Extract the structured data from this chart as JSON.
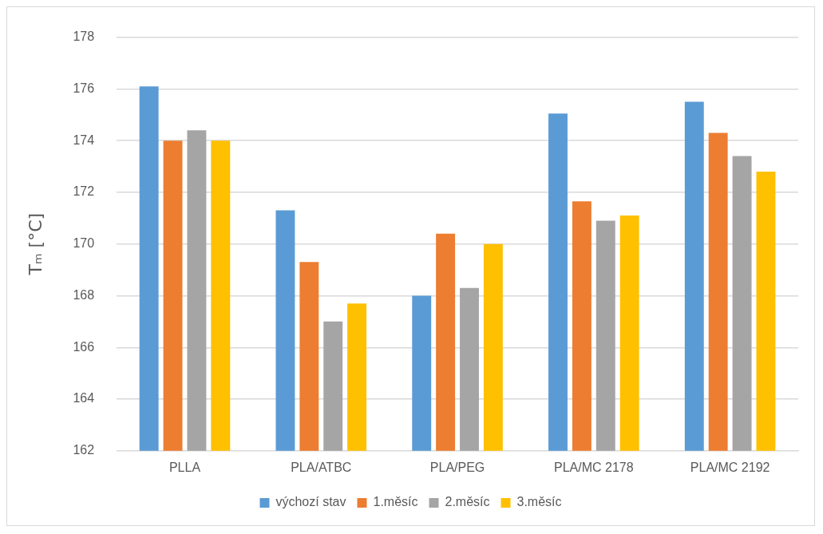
{
  "chart_data": {
    "type": "bar",
    "ylabel": "Tₘ [°C]",
    "categories": [
      "PLLA",
      "PLA/ATBC",
      "PLA/PEG",
      "PLA/MC 2178",
      "PLA/MC 2192"
    ],
    "series": [
      {
        "name": "výchozí stav",
        "color": "#5b9bd5",
        "values": [
          176.1,
          171.3,
          168.0,
          175.05,
          175.5
        ]
      },
      {
        "name": "1.měsíc",
        "color": "#ed7d31",
        "values": [
          174.0,
          169.3,
          170.4,
          171.65,
          174.3
        ]
      },
      {
        "name": "2.měsíc",
        "color": "#a5a5a5",
        "values": [
          174.4,
          167.0,
          168.3,
          170.9,
          173.4
        ]
      },
      {
        "name": "3.měsíc",
        "color": "#ffc000",
        "values": [
          174.0,
          167.7,
          170.0,
          171.1,
          172.8
        ]
      }
    ],
    "ylim": [
      162,
      178
    ],
    "yticks": [
      162,
      164,
      166,
      168,
      170,
      172,
      174,
      176,
      178
    ],
    "grid": "y",
    "legend": "bottom"
  }
}
